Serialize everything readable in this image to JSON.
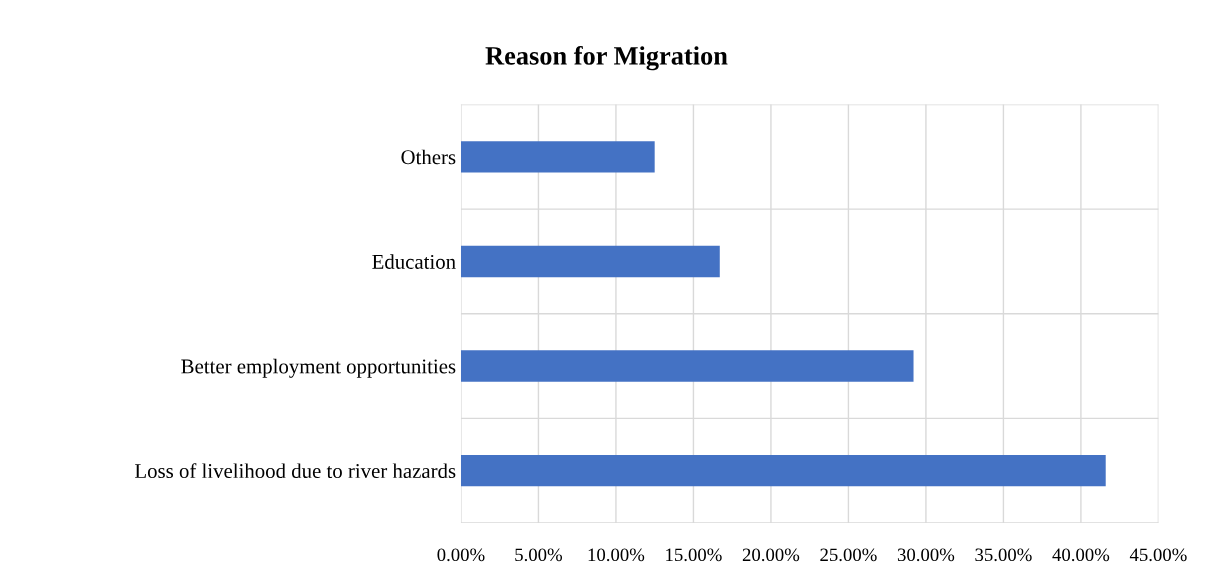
{
  "chart_data": {
    "type": "bar",
    "orientation": "horizontal",
    "title": "Reason for Migration",
    "categories": [
      "Others",
      "Education",
      "Better employment opportunities",
      "Loss of livelihood due to river hazards"
    ],
    "values": [
      12.5,
      16.7,
      29.2,
      41.6
    ],
    "color": "#4472c4",
    "xlim": [
      0,
      45
    ],
    "xticks": [
      {
        "value": 0,
        "label": "0.00%"
      },
      {
        "value": 5,
        "label": "5.00%"
      },
      {
        "value": 10,
        "label": "10.00%"
      },
      {
        "value": 15,
        "label": "15.00%"
      },
      {
        "value": 20,
        "label": "20.00%"
      },
      {
        "value": 25,
        "label": "25.00%"
      },
      {
        "value": 30,
        "label": "30.00%"
      },
      {
        "value": 35,
        "label": "35.00%"
      },
      {
        "value": 40,
        "label": "40.00%"
      },
      {
        "value": 45,
        "label": "45.00%"
      }
    ],
    "grid": true,
    "legend": false
  }
}
